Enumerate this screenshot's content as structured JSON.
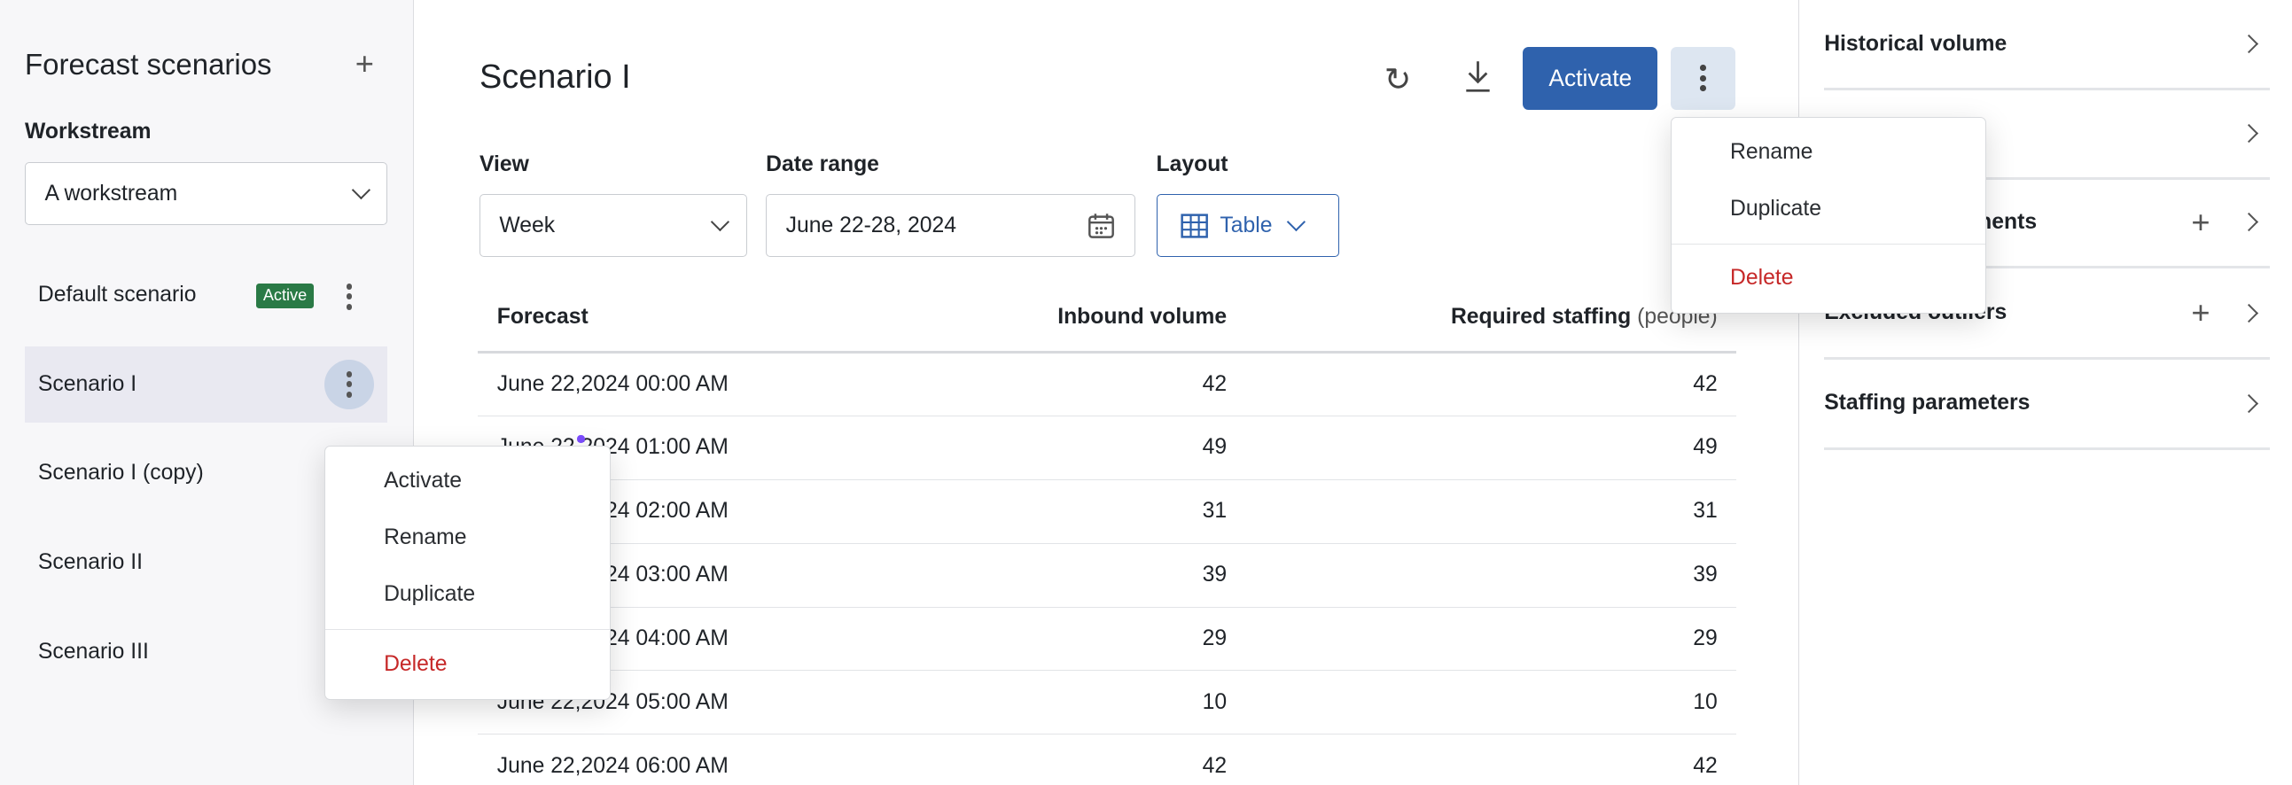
{
  "sidebar": {
    "title": "Forecast scenarios",
    "workstream_label": "Workstream",
    "workstream_value": "A workstream",
    "scenarios": [
      {
        "name": "Default scenario",
        "badge": "Active"
      },
      {
        "name": "Scenario I"
      },
      {
        "name": "Scenario I (copy)"
      },
      {
        "name": "Scenario II"
      },
      {
        "name": "Scenario III"
      }
    ],
    "context_menu": [
      "Activate",
      "Rename",
      "Duplicate",
      "Delete"
    ]
  },
  "header": {
    "title": "Scenario I",
    "activate": "Activate",
    "more_menu": [
      "Rename",
      "Duplicate",
      "Delete"
    ]
  },
  "filters": {
    "view_label": "View",
    "view_value": "Week",
    "date_label": "Date range",
    "date_value": "June 22-28, 2024",
    "layout_label": "Layout",
    "layout_value": "Table"
  },
  "table": {
    "columns": [
      "Forecast",
      "Inbound volume",
      "Required staffing",
      "(people)"
    ],
    "rows": [
      [
        "June 22,2024 00:00 AM",
        "42",
        "42"
      ],
      [
        "June 22,2024 01:00 AM",
        "49",
        "49"
      ],
      [
        "June 22,2024 02:00 AM",
        "31",
        "31"
      ],
      [
        "June 22,2024 03:00 AM",
        "39",
        "39"
      ],
      [
        "June 22,2024 04:00 AM",
        "29",
        "29"
      ],
      [
        "June 22,2024 05:00 AM",
        "10",
        "10"
      ],
      [
        "June 22,2024 06:00 AM",
        "42",
        "42"
      ]
    ]
  },
  "right_panel": {
    "items": [
      "Historical volume",
      "",
      "Volume adjustments",
      "Excluded outliers",
      "Staffing parameters"
    ]
  },
  "colors": {
    "primary": "#2f62ad",
    "active_badge": "#2a7a46",
    "delete": "#c62828"
  }
}
